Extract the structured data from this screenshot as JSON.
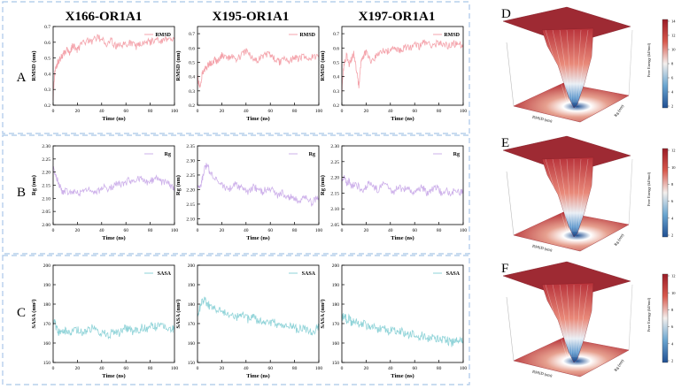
{
  "column_titles": [
    "X166-OR1A1",
    "X195-OR1A1",
    "X197-OR1A1"
  ],
  "row_labels": [
    "A",
    "B",
    "C"
  ],
  "fel_labels": [
    "D",
    "E",
    "F"
  ],
  "colors": {
    "rmsd": "#f4a3ab",
    "rg": "#cdb0ea",
    "sasa": "#8fd3d8",
    "panel_border": "#a9c6e8",
    "fel_high": "#9a1c26",
    "fel_mid": "#f4f0ee",
    "fel_low": "#1f4f92"
  },
  "fel_panels": [
    {
      "label": "D",
      "xlabel": "RMSD (nm)",
      "ylabel": "Rg (nm)",
      "zlabel": "Free Energy (kJ/mol)",
      "colorbar_ticks": [
        "14",
        "12",
        "10",
        "8",
        "6",
        "4",
        "2"
      ]
    },
    {
      "label": "E",
      "xlabel": "RMSD (nm)",
      "ylabel": "Rg (nm)",
      "zlabel": "Free Energy (kJ/mol)",
      "colorbar_ticks": [
        "12",
        "10",
        "8",
        "6",
        "4",
        "2"
      ]
    },
    {
      "label": "F",
      "xlabel": "RMSD (nm)",
      "ylabel": "Rg (nm)",
      "zlabel": "Free Energy (kJ/mol)",
      "colorbar_ticks": [
        "12",
        "10",
        "8",
        "6",
        "4",
        "2"
      ]
    }
  ],
  "chart_data": [
    {
      "type": "line",
      "id": "rmsd-x166",
      "series_name": "RMSD",
      "xlabel": "Time (ns)",
      "ylabel": "RMSD (nm)",
      "xlim": [
        0,
        100
      ],
      "ylim": [
        0.2,
        0.7
      ],
      "xticks": [
        0,
        20,
        40,
        60,
        80,
        100
      ],
      "yticks": [
        0.2,
        0.3,
        0.4,
        0.5,
        0.6,
        0.7
      ],
      "ytick_decimals": 1,
      "color_key": "rmsd",
      "x": [
        0,
        1,
        2,
        4,
        6,
        8,
        10,
        12,
        14,
        16,
        18,
        20,
        24,
        28,
        32,
        36,
        40,
        44,
        48,
        52,
        56,
        60,
        64,
        68,
        72,
        76,
        80,
        84,
        88,
        92,
        96,
        100
      ],
      "y": [
        0.25,
        0.38,
        0.44,
        0.47,
        0.5,
        0.52,
        0.54,
        0.56,
        0.53,
        0.58,
        0.57,
        0.55,
        0.59,
        0.61,
        0.6,
        0.63,
        0.62,
        0.59,
        0.61,
        0.57,
        0.59,
        0.58,
        0.6,
        0.57,
        0.59,
        0.61,
        0.6,
        0.62,
        0.6,
        0.63,
        0.61,
        0.62
      ]
    },
    {
      "type": "line",
      "id": "rmsd-x195",
      "series_name": "RMSD",
      "xlabel": "Time (ns)",
      "ylabel": "RMSD (nm)",
      "xlim": [
        0,
        100
      ],
      "ylim": [
        0.2,
        0.75
      ],
      "xticks": [
        0,
        20,
        40,
        60,
        80,
        100
      ],
      "yticks": [
        0.2,
        0.3,
        0.4,
        0.5,
        0.6,
        0.7
      ],
      "ytick_decimals": 1,
      "color_key": "rmsd",
      "x": [
        0,
        1,
        2,
        4,
        6,
        8,
        10,
        12,
        14,
        16,
        18,
        20,
        24,
        28,
        32,
        36,
        40,
        44,
        48,
        52,
        56,
        60,
        64,
        68,
        72,
        76,
        80,
        84,
        88,
        92,
        96,
        100
      ],
      "y": [
        0.4,
        0.36,
        0.33,
        0.42,
        0.45,
        0.47,
        0.49,
        0.5,
        0.52,
        0.5,
        0.53,
        0.55,
        0.52,
        0.54,
        0.51,
        0.55,
        0.58,
        0.54,
        0.51,
        0.53,
        0.56,
        0.55,
        0.52,
        0.5,
        0.53,
        0.51,
        0.54,
        0.52,
        0.55,
        0.53,
        0.54,
        0.55
      ]
    },
    {
      "type": "line",
      "id": "rmsd-x197",
      "series_name": "RMSD",
      "xlabel": "Time (ns)",
      "ylabel": "RMSD (nm)",
      "xlim": [
        0,
        100
      ],
      "ylim": [
        0.2,
        0.75
      ],
      "xticks": [
        0,
        20,
        40,
        60,
        80,
        100
      ],
      "yticks": [
        0.2,
        0.3,
        0.4,
        0.5,
        0.6,
        0.7
      ],
      "ytick_decimals": 1,
      "color_key": "rmsd",
      "x": [
        0,
        1,
        2,
        4,
        6,
        8,
        10,
        12,
        14,
        16,
        18,
        20,
        24,
        28,
        32,
        36,
        40,
        44,
        48,
        52,
        56,
        60,
        64,
        68,
        72,
        76,
        80,
        84,
        88,
        92,
        96,
        100
      ],
      "y": [
        0.3,
        0.42,
        0.5,
        0.55,
        0.48,
        0.53,
        0.56,
        0.45,
        0.33,
        0.52,
        0.55,
        0.57,
        0.5,
        0.54,
        0.58,
        0.57,
        0.59,
        0.6,
        0.58,
        0.61,
        0.6,
        0.62,
        0.61,
        0.64,
        0.63,
        0.62,
        0.64,
        0.63,
        0.61,
        0.63,
        0.62,
        0.63
      ]
    },
    {
      "type": "line",
      "id": "rg-x166",
      "series_name": "Rg",
      "xlabel": "Time (ns)",
      "ylabel": "Rg (nm)",
      "xlim": [
        0,
        100
      ],
      "ylim": [
        2.0,
        2.3
      ],
      "xticks": [
        0,
        20,
        40,
        60,
        80,
        100
      ],
      "yticks": [
        2.0,
        2.05,
        2.1,
        2.15,
        2.2,
        2.25,
        2.3
      ],
      "ytick_decimals": 2,
      "color_key": "rg",
      "x": [
        0,
        2,
        4,
        6,
        8,
        10,
        14,
        18,
        22,
        26,
        30,
        34,
        38,
        42,
        46,
        50,
        54,
        58,
        62,
        66,
        70,
        74,
        78,
        82,
        86,
        90,
        94,
        98,
        100
      ],
      "y": [
        2.22,
        2.19,
        2.16,
        2.14,
        2.12,
        2.13,
        2.12,
        2.13,
        2.12,
        2.13,
        2.14,
        2.12,
        2.13,
        2.14,
        2.13,
        2.15,
        2.16,
        2.15,
        2.17,
        2.16,
        2.18,
        2.17,
        2.16,
        2.17,
        2.18,
        2.16,
        2.17,
        2.14,
        2.13
      ]
    },
    {
      "type": "line",
      "id": "rg-x195",
      "series_name": "Rg",
      "xlabel": "Time (ns)",
      "ylabel": "Rg (nm)",
      "xlim": [
        0,
        100
      ],
      "ylim": [
        2.08,
        2.35
      ],
      "xticks": [
        0,
        20,
        40,
        60,
        80,
        100
      ],
      "yticks": [
        2.1,
        2.15,
        2.2,
        2.25,
        2.3,
        2.35
      ],
      "ytick_decimals": 2,
      "color_key": "rg",
      "x": [
        0,
        2,
        4,
        6,
        8,
        10,
        14,
        18,
        22,
        26,
        30,
        34,
        38,
        42,
        46,
        50,
        54,
        58,
        62,
        66,
        70,
        74,
        78,
        82,
        86,
        90,
        94,
        98,
        100
      ],
      "y": [
        2.22,
        2.2,
        2.24,
        2.27,
        2.29,
        2.26,
        2.24,
        2.22,
        2.21,
        2.2,
        2.22,
        2.21,
        2.2,
        2.19,
        2.21,
        2.2,
        2.19,
        2.21,
        2.2,
        2.18,
        2.19,
        2.17,
        2.18,
        2.16,
        2.17,
        2.18,
        2.15,
        2.17,
        2.16
      ]
    },
    {
      "type": "line",
      "id": "rg-x197",
      "series_name": "Rg",
      "xlabel": "Time (ns)",
      "ylabel": "Rg (nm)",
      "xlim": [
        0,
        100
      ],
      "ylim": [
        2.05,
        2.3
      ],
      "xticks": [
        0,
        20,
        40,
        60,
        80,
        100
      ],
      "yticks": [
        2.05,
        2.1,
        2.15,
        2.2,
        2.25,
        2.3
      ],
      "ytick_decimals": 2,
      "color_key": "rg",
      "x": [
        0,
        2,
        4,
        6,
        8,
        10,
        14,
        18,
        22,
        26,
        30,
        34,
        38,
        42,
        46,
        50,
        54,
        58,
        62,
        66,
        70,
        74,
        78,
        82,
        86,
        90,
        94,
        98,
        100
      ],
      "y": [
        2.19,
        2.2,
        2.18,
        2.19,
        2.17,
        2.18,
        2.17,
        2.16,
        2.18,
        2.17,
        2.16,
        2.18,
        2.17,
        2.15,
        2.17,
        2.16,
        2.17,
        2.15,
        2.16,
        2.17,
        2.15,
        2.16,
        2.17,
        2.15,
        2.16,
        2.15,
        2.16,
        2.15,
        2.16
      ]
    },
    {
      "type": "line",
      "id": "sasa-x166",
      "series_name": "SASA",
      "xlabel": "Time (ns)",
      "ylabel": "SASA (nm²)",
      "xlim": [
        0,
        100
      ],
      "ylim": [
        150,
        200
      ],
      "xticks": [
        0,
        20,
        40,
        60,
        80,
        100
      ],
      "yticks": [
        150,
        160,
        170,
        180,
        190,
        200
      ],
      "ytick_decimals": 0,
      "color_key": "sasa",
      "x": [
        0,
        2,
        4,
        6,
        8,
        10,
        14,
        18,
        22,
        26,
        30,
        34,
        38,
        42,
        46,
        50,
        54,
        58,
        62,
        66,
        70,
        74,
        78,
        82,
        86,
        90,
        94,
        98,
        100
      ],
      "y": [
        172,
        169,
        166,
        165,
        167,
        166,
        165,
        167,
        166,
        165,
        167,
        168,
        165,
        166,
        164,
        166,
        165,
        167,
        168,
        166,
        167,
        168,
        167,
        169,
        168,
        170,
        168,
        167,
        168
      ]
    },
    {
      "type": "line",
      "id": "sasa-x195",
      "series_name": "SASA",
      "xlabel": "Time (ns)",
      "ylabel": "SASA (nm²)",
      "xlim": [
        0,
        100
      ],
      "ylim": [
        150,
        200
      ],
      "xticks": [
        0,
        20,
        40,
        60,
        80,
        100
      ],
      "yticks": [
        150,
        160,
        170,
        180,
        190,
        200
      ],
      "ytick_decimals": 0,
      "color_key": "sasa",
      "x": [
        0,
        2,
        4,
        6,
        8,
        10,
        14,
        18,
        22,
        26,
        30,
        34,
        38,
        42,
        46,
        50,
        54,
        58,
        62,
        66,
        70,
        74,
        78,
        82,
        86,
        90,
        94,
        98,
        100
      ],
      "y": [
        175,
        178,
        181,
        182,
        180,
        179,
        178,
        177,
        176,
        175,
        174,
        173,
        175,
        172,
        173,
        171,
        172,
        170,
        171,
        169,
        170,
        168,
        169,
        167,
        168,
        167,
        166,
        167,
        168
      ]
    },
    {
      "type": "line",
      "id": "sasa-x197",
      "series_name": "SASA",
      "xlabel": "Time (ns)",
      "ylabel": "SASA (nm²)",
      "xlim": [
        0,
        100
      ],
      "ylim": [
        150,
        200
      ],
      "xticks": [
        0,
        20,
        40,
        60,
        80,
        100
      ],
      "yticks": [
        150,
        160,
        170,
        180,
        190,
        200
      ],
      "ytick_decimals": 0,
      "color_key": "sasa",
      "x": [
        0,
        2,
        4,
        6,
        8,
        10,
        14,
        18,
        22,
        26,
        30,
        34,
        38,
        42,
        46,
        50,
        54,
        58,
        62,
        66,
        70,
        74,
        78,
        82,
        86,
        90,
        94,
        98,
        100
      ],
      "y": [
        172,
        175,
        171,
        173,
        170,
        172,
        169,
        170,
        168,
        169,
        167,
        168,
        166,
        167,
        165,
        166,
        164,
        165,
        163,
        164,
        162,
        163,
        162,
        161,
        162,
        160,
        161,
        162,
        161
      ]
    }
  ]
}
